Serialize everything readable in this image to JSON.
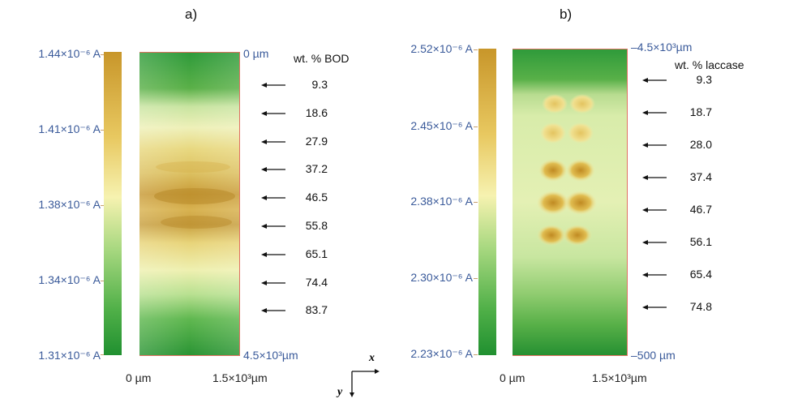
{
  "panel_a": {
    "label": "a)",
    "scale_ticks": [
      "1.44×10⁻⁶ A",
      "1.41×10⁻⁶ A",
      "1.38×10⁻⁶ A",
      "1.34×10⁻⁶ A",
      "1.31×10⁻⁶ A"
    ],
    "y_top": "0 µm",
    "y_bottom": "4.5×10³µm",
    "x_left": "0 µm",
    "x_right": "1.5×10³µm",
    "wt_title": "wt. % BOD",
    "wt_values": [
      "9.3",
      "18.6",
      "27.9",
      "37.2",
      "46.5",
      "55.8",
      "65.1",
      "74.4",
      "83.7"
    ]
  },
  "panel_b": {
    "label": "b)",
    "scale_ticks": [
      "2.52×10⁻⁶ A",
      "2.45×10⁻⁶ A",
      "2.38×10⁻⁶ A",
      "2.30×10⁻⁶ A",
      "2.23×10⁻⁶ A"
    ],
    "y_top": "–4.5×10³µm",
    "y_bottom": "–500 µm",
    "x_left": "0 µm",
    "x_right": "1.5×10³µm",
    "wt_title": "wt. % laccase",
    "wt_values": [
      "9.3",
      "18.7",
      "28.0",
      "37.4",
      "46.7",
      "56.1",
      "65.4",
      "74.8"
    ]
  },
  "axes_icon": {
    "x": "x",
    "y": "y"
  },
  "colors": {
    "high": "#c8962a",
    "mid": "#f4f0a0",
    "low": "#2e9a3a",
    "axis_text": "#3a5a9a"
  }
}
